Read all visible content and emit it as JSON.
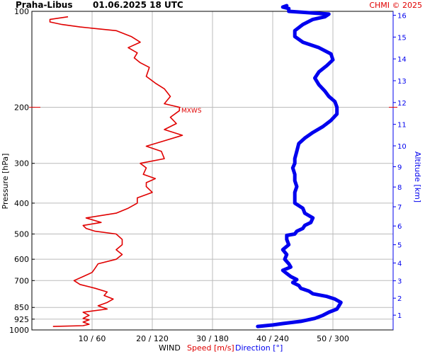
{
  "header": {
    "station": "Praha-Libus",
    "datetime": "01.06.2025 18 UTC",
    "copyright": "CHMI © 2025"
  },
  "colors": {
    "speed": "#e00000",
    "direction": "#0000ee",
    "grid": "#bbbbbb",
    "axis": "#000000"
  },
  "chart_data": {
    "type": "line",
    "y_axis_left": {
      "label": "Pressure [hPa]",
      "scale": "log",
      "range": [
        1000,
        100
      ],
      "ticks": [
        100,
        200,
        300,
        400,
        500,
        600,
        700,
        850,
        925,
        1000
      ]
    },
    "y_axis_right": {
      "label": "Altitude [km]",
      "ticks": [
        1,
        2,
        3,
        4,
        5,
        6,
        7,
        8,
        9,
        10,
        11,
        12,
        13,
        14,
        15,
        16
      ]
    },
    "x_axis": {
      "prefix_label": "WIND",
      "speed_label": "Speed [m/s]",
      "direction_label": "Direction [°]",
      "speed_range": [
        0,
        60
      ],
      "direction_range": [
        0,
        360
      ],
      "ticks": [
        {
          "speed": 10,
          "direction": 60,
          "label": "10 / 60"
        },
        {
          "speed": 20,
          "direction": 120,
          "label": "20 / 120"
        },
        {
          "speed": 30,
          "direction": 180,
          "label": "30 / 180"
        },
        {
          "speed": 40,
          "direction": 240,
          "label": "40 / 240"
        },
        {
          "speed": 50,
          "direction": 300,
          "label": "50 / 300"
        }
      ]
    },
    "max_wind": {
      "label": "MXWS",
      "pressure": 200,
      "speed": 24.5
    },
    "grid": true,
    "series": [
      {
        "name": "Speed [m/s]",
        "color": "#e00000",
        "points": [
          [
            975,
            3.5
          ],
          [
            970,
            8.5
          ],
          [
            960,
            9.5
          ],
          [
            945,
            8.5
          ],
          [
            930,
            9.5
          ],
          [
            920,
            8.5
          ],
          [
            900,
            9.5
          ],
          [
            880,
            8.5
          ],
          [
            860,
            12.5
          ],
          [
            840,
            11
          ],
          [
            820,
            12.5
          ],
          [
            800,
            13.5
          ],
          [
            780,
            12
          ],
          [
            760,
            12.5
          ],
          [
            740,
            10.5
          ],
          [
            720,
            8
          ],
          [
            700,
            7
          ],
          [
            680,
            8.5
          ],
          [
            660,
            10
          ],
          [
            640,
            10.5
          ],
          [
            620,
            11
          ],
          [
            600,
            14
          ],
          [
            580,
            15
          ],
          [
            560,
            14
          ],
          [
            540,
            15
          ],
          [
            520,
            15
          ],
          [
            500,
            14
          ],
          [
            490,
            10.5
          ],
          [
            480,
            9
          ],
          [
            470,
            8.5
          ],
          [
            460,
            11.5
          ],
          [
            445,
            9
          ],
          [
            430,
            14
          ],
          [
            415,
            16
          ],
          [
            400,
            17.5
          ],
          [
            385,
            17.5
          ],
          [
            370,
            20
          ],
          [
            355,
            19
          ],
          [
            345,
            19
          ],
          [
            335,
            20.5
          ],
          [
            325,
            18.5
          ],
          [
            310,
            19
          ],
          [
            300,
            18
          ],
          [
            290,
            22
          ],
          [
            275,
            21.5
          ],
          [
            265,
            19
          ],
          [
            255,
            22
          ],
          [
            245,
            25
          ],
          [
            235,
            22
          ],
          [
            225,
            24
          ],
          [
            215,
            23
          ],
          [
            205,
            24.5
          ],
          [
            200,
            24.5
          ],
          [
            195,
            22
          ],
          [
            185,
            23
          ],
          [
            175,
            22
          ],
          [
            168,
            20.5
          ],
          [
            160,
            19
          ],
          [
            150,
            19.5
          ],
          [
            145,
            18
          ],
          [
            140,
            17
          ],
          [
            135,
            17.5
          ],
          [
            130,
            16
          ],
          [
            125,
            18
          ],
          [
            120,
            16.5
          ],
          [
            115,
            14
          ],
          [
            112,
            8
          ],
          [
            110,
            5
          ],
          [
            108,
            3
          ],
          [
            106,
            3
          ],
          [
            104,
            6
          ]
        ]
      },
      {
        "name": "Direction [°]",
        "color": "#0000ee",
        "points": [
          [
            975,
            225
          ],
          [
            965,
            240
          ],
          [
            955,
            250
          ],
          [
            940,
            268
          ],
          [
            920,
            282
          ],
          [
            900,
            290
          ],
          [
            880,
            296
          ],
          [
            860,
            304
          ],
          [
            840,
            306
          ],
          [
            820,
            308
          ],
          [
            800,
            302
          ],
          [
            785,
            294
          ],
          [
            770,
            280
          ],
          [
            755,
            276
          ],
          [
            740,
            268
          ],
          [
            725,
            266
          ],
          [
            710,
            260
          ],
          [
            695,
            264
          ],
          [
            680,
            258
          ],
          [
            665,
            254
          ],
          [
            650,
            250
          ],
          [
            635,
            258
          ],
          [
            620,
            256
          ],
          [
            600,
            252
          ],
          [
            580,
            254
          ],
          [
            560,
            250
          ],
          [
            540,
            256
          ],
          [
            520,
            254
          ],
          [
            505,
            254
          ],
          [
            500,
            262
          ],
          [
            490,
            264
          ],
          [
            480,
            270
          ],
          [
            470,
            272
          ],
          [
            460,
            278
          ],
          [
            445,
            280
          ],
          [
            430,
            272
          ],
          [
            415,
            270
          ],
          [
            400,
            262
          ],
          [
            385,
            262
          ],
          [
            370,
            262
          ],
          [
            355,
            264
          ],
          [
            340,
            262
          ],
          [
            325,
            262
          ],
          [
            310,
            260
          ],
          [
            300,
            262
          ],
          [
            290,
            262
          ],
          [
            275,
            264
          ],
          [
            260,
            266
          ],
          [
            250,
            272
          ],
          [
            240,
            280
          ],
          [
            230,
            290
          ],
          [
            220,
            298
          ],
          [
            210,
            304
          ],
          [
            200,
            304
          ],
          [
            192,
            302
          ],
          [
            185,
            296
          ],
          [
            178,
            292
          ],
          [
            170,
            286
          ],
          [
            162,
            282
          ],
          [
            155,
            286
          ],
          [
            148,
            294
          ],
          [
            142,
            300
          ],
          [
            136,
            298
          ],
          [
            130,
            286
          ],
          [
            125,
            270
          ],
          [
            120,
            262
          ],
          [
            115,
            262
          ],
          [
            110,
            270
          ],
          [
            106,
            280
          ],
          [
            104,
            292
          ],
          [
            102,
            296
          ],
          [
            100,
            256
          ],
          [
            98,
            256
          ],
          [
            97,
            250
          ],
          [
            96,
            254
          ]
        ]
      }
    ]
  }
}
